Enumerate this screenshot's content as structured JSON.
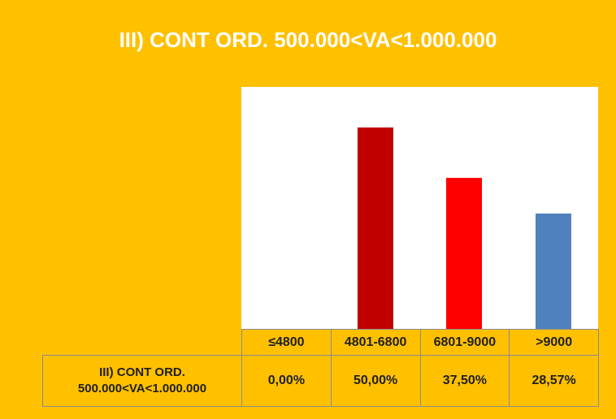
{
  "chart_data": {
    "type": "bar",
    "title": "III) CONT ORD. 500.000<VA<1.000.000",
    "categories": [
      "≤4800",
      "4801-6800",
      "6801-9000",
      ">9000"
    ],
    "series": [
      {
        "name": "III) CONT ORD. 500.000<VA<1.000.000",
        "values": [
          0,
          50,
          37.5,
          28.57
        ],
        "value_labels": [
          "0,00%",
          "50,00%",
          "37,50%",
          "28,57%"
        ],
        "colors": [
          "#4f81bd",
          "#c00000",
          "#ff0000",
          "#4f81bd"
        ]
      }
    ],
    "ylim": [
      0,
      60
    ]
  }
}
